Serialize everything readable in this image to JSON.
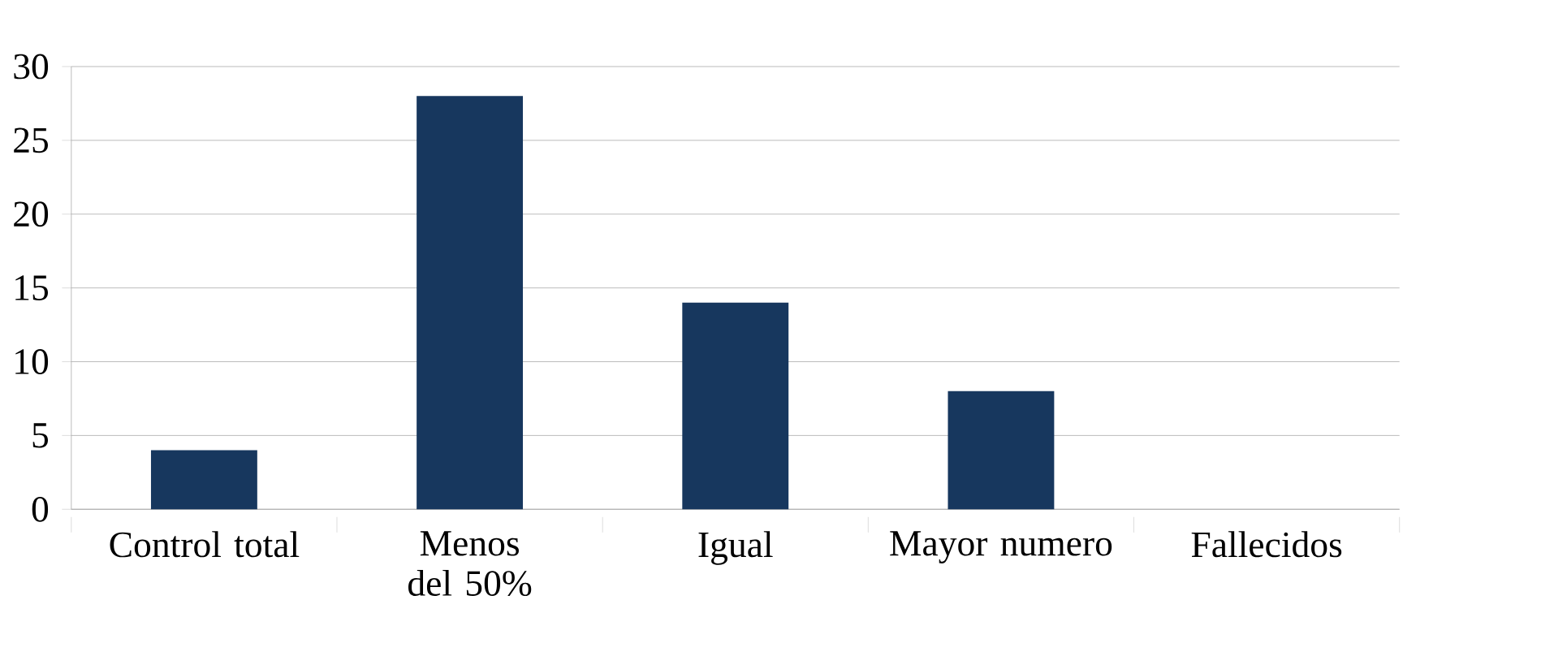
{
  "chart_data": {
    "type": "bar",
    "categories": [
      "Control total",
      "Menos del 50%",
      "Igual",
      "Mayor numero",
      "Fallecidos"
    ],
    "values": [
      4,
      28,
      14,
      8,
      0
    ],
    "color": "#17375e",
    "ylim": [
      0,
      30
    ],
    "yticks": [
      0,
      5,
      10,
      15,
      20,
      25,
      30
    ],
    "grid": "y"
  }
}
